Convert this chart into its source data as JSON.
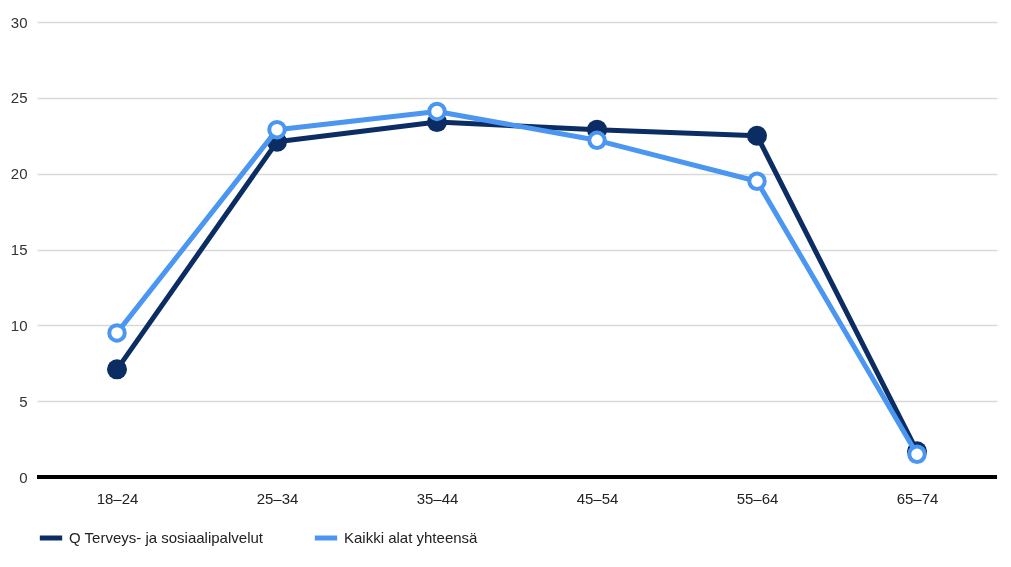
{
  "chart_data": {
    "type": "line",
    "categories": [
      "18–24",
      "25–34",
      "35–44",
      "45–54",
      "55–64",
      "65–74"
    ],
    "series": [
      {
        "name": "Q Terveys- ja sosiaalipalvelut",
        "color": "#0b2d63",
        "values": [
          7.1,
          22.1,
          23.4,
          22.9,
          22.5,
          1.7
        ],
        "marker": "circle"
      },
      {
        "name": "Kaikki alat yhteensä",
        "color": "#4a96f0",
        "values": [
          9.5,
          22.9,
          24.1,
          22.2,
          19.5,
          1.5
        ],
        "marker": "open-circle"
      }
    ],
    "ylim": [
      0,
      30
    ],
    "yticks": [
      0,
      5,
      10,
      15,
      20,
      25,
      30
    ],
    "grid": "y",
    "legend": "bottom",
    "line_style": "solid"
  }
}
